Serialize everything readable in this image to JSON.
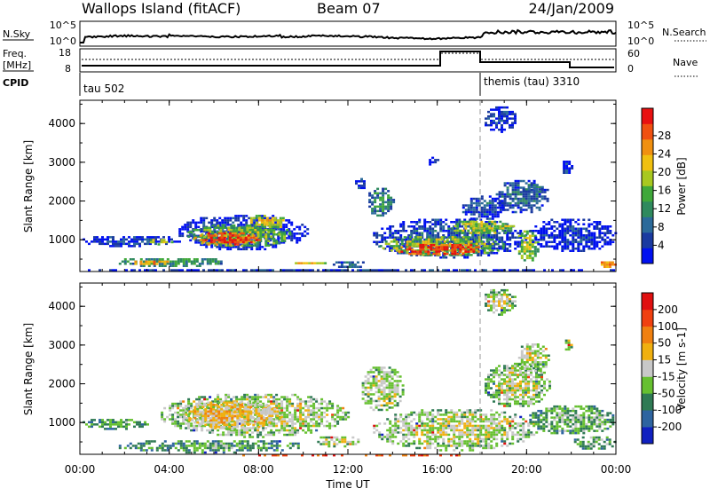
{
  "header": {
    "title": "Wallops Island (fitACF)",
    "beam": "Beam 07",
    "date": "24/Jan/2009"
  },
  "params": {
    "nsky_label": "N.Sky",
    "nsky_ticks": [
      "10^5",
      "10^0"
    ],
    "nsearch_label": "N.Search",
    "nsearch_ticks": [
      "10^5",
      "10^0"
    ],
    "freq_label": "Freq.",
    "freq_unit": "[MHz]",
    "freq_ticks": [
      "18",
      "8"
    ],
    "nave_label": "Nave",
    "nave_ticks": [
      "60",
      "0"
    ],
    "cpid_label": "CPID",
    "cpid_segments": [
      {
        "label": "tau 502",
        "start_h": 0
      },
      {
        "label": "themis (tau) 3310",
        "start_h": 18
      }
    ]
  },
  "chart_data": [
    {
      "type": "heatmap",
      "name": "power",
      "xlabel": "Time UT",
      "ylabel": "Slant Range [km]",
      "xlim": [
        0,
        24
      ],
      "ylim": [
        180,
        4600
      ],
      "yticks": [
        "1000",
        "2000",
        "3000",
        "4000"
      ],
      "colorbar_label": "Power [dB]",
      "colorbar_ticks": [
        "4",
        "8",
        "12",
        "16",
        "20",
        "24",
        "28"
      ],
      "colorbar_colors": [
        "#0010f0",
        "#1a3aa0",
        "#2b6a9a",
        "#2f8a5e",
        "#3fa83a",
        "#a8c820",
        "#f0c010",
        "#f09010",
        "#f05010",
        "#e81010"
      ],
      "regions": [
        {
          "t": [
            0.0,
            24.0
          ],
          "r": [
            200,
            300
          ],
          "level": 0.15
        },
        {
          "t": [
            0.0,
            4.5
          ],
          "r": [
            850,
            1150
          ],
          "level": 0.15
        },
        {
          "t": [
            3.0,
            4.2
          ],
          "r": [
            880,
            1080
          ],
          "level": 0.55
        },
        {
          "t": [
            1.5,
            6.5
          ],
          "r": [
            330,
            580
          ],
          "level": 0.4
        },
        {
          "t": [
            2.2,
            4.0
          ],
          "r": [
            380,
            520
          ],
          "level": 0.8
        },
        {
          "t": [
            4.3,
            10.2
          ],
          "r": [
            750,
            1700
          ],
          "level": 0.15
        },
        {
          "t": [
            4.7,
            9.5
          ],
          "r": [
            820,
            1450
          ],
          "level": 0.5
        },
        {
          "t": [
            5.0,
            8.0
          ],
          "r": [
            850,
            1250
          ],
          "level": 0.9
        },
        {
          "t": [
            7.5,
            9.2
          ],
          "r": [
            1300,
            1700
          ],
          "level": 0.6
        },
        {
          "t": [
            9.5,
            11.0
          ],
          "r": [
            380,
            480
          ],
          "level": 0.65
        },
        {
          "t": [
            11.2,
            12.8
          ],
          "r": [
            300,
            500
          ],
          "level": 0.25
        },
        {
          "t": [
            12.8,
            14.0
          ],
          "r": [
            1600,
            2400
          ],
          "level": 0.35
        },
        {
          "t": [
            12.2,
            12.8
          ],
          "r": [
            2300,
            2650
          ],
          "level": 0.15
        },
        {
          "t": [
            13.0,
            20.0
          ],
          "r": [
            550,
            1600
          ],
          "level": 0.2
        },
        {
          "t": [
            13.3,
            19.0
          ],
          "r": [
            600,
            1150
          ],
          "level": 0.55
        },
        {
          "t": [
            14.0,
            18.0
          ],
          "r": [
            620,
            950
          ],
          "level": 0.95
        },
        {
          "t": [
            16.5,
            19.5
          ],
          "r": [
            1150,
            1550
          ],
          "level": 0.55
        },
        {
          "t": [
            19.5,
            20.5
          ],
          "r": [
            450,
            1300
          ],
          "level": 0.55
        },
        {
          "t": [
            20.0,
            24.0
          ],
          "r": [
            700,
            1600
          ],
          "level": 0.12
        },
        {
          "t": [
            17.0,
            19.0
          ],
          "r": [
            1500,
            2200
          ],
          "level": 0.2
        },
        {
          "t": [
            18.5,
            21.0
          ],
          "r": [
            1700,
            2600
          ],
          "level": 0.25
        },
        {
          "t": [
            19.7,
            20.7
          ],
          "r": [
            2200,
            2500
          ],
          "level": 0.3
        },
        {
          "t": [
            21.5,
            22.0
          ],
          "r": [
            2700,
            3100
          ],
          "level": 0.15
        },
        {
          "t": [
            15.5,
            16.0
          ],
          "r": [
            2950,
            3200
          ],
          "level": 0.15
        },
        {
          "t": [
            18.0,
            19.5
          ],
          "r": [
            3800,
            4500
          ],
          "level": 0.15
        },
        {
          "t": [
            23.2,
            24.0
          ],
          "r": [
            300,
            500
          ],
          "level": 0.8
        }
      ]
    },
    {
      "type": "heatmap",
      "name": "velocity",
      "xlabel": "Time UT",
      "ylabel": "Slant Range [km]",
      "xlim": [
        0,
        24
      ],
      "ylim": [
        180,
        4600
      ],
      "xticks": [
        "00:00",
        "04:00",
        "08:00",
        "12:00",
        "16:00",
        "20:00",
        "00:00"
      ],
      "yticks": [
        "1000",
        "2000",
        "3000",
        "4000"
      ],
      "colorbar_label": "Velocity [m s-1]",
      "colorbar_ticks": [
        "200",
        "100",
        "50",
        "15",
        "-15",
        "-50",
        "-100",
        "-200"
      ],
      "colorbar_colors": [
        "#1020c0",
        "#2e64a0",
        "#2f7a54",
        "#66c030",
        "#c8c8c8",
        "#f0b010",
        "#f08010",
        "#f04010",
        "#e01010"
      ],
      "regions": [
        {
          "t": [
            0.0,
            24.0
          ],
          "r": [
            180,
            240
          ],
          "level": 0.92
        },
        {
          "t": [
            0.0,
            3.0
          ],
          "r": [
            850,
            1150
          ],
          "level": 0.35
        },
        {
          "t": [
            1.5,
            10.0
          ],
          "r": [
            250,
            600
          ],
          "level": 0.35
        },
        {
          "t": [
            3.5,
            12.0
          ],
          "r": [
            650,
            1800
          ],
          "level": 0.5
        },
        {
          "t": [
            4.5,
            9.0
          ],
          "r": [
            850,
            1600
          ],
          "level": 0.62
        },
        {
          "t": [
            10.5,
            12.5
          ],
          "r": [
            400,
            700
          ],
          "level": 0.5
        },
        {
          "t": [
            12.5,
            14.5
          ],
          "r": [
            1300,
            2500
          ],
          "level": 0.5
        },
        {
          "t": [
            13.0,
            20.5
          ],
          "r": [
            300,
            1400
          ],
          "level": 0.5
        },
        {
          "t": [
            18.0,
            21.0
          ],
          "r": [
            1400,
            2600
          ],
          "level": 0.5
        },
        {
          "t": [
            19.5,
            21.0
          ],
          "r": [
            2300,
            3100
          ],
          "level": 0.5
        },
        {
          "t": [
            20.0,
            24.0
          ],
          "r": [
            700,
            1500
          ],
          "level": 0.4
        },
        {
          "t": [
            22.0,
            24.0
          ],
          "r": [
            300,
            700
          ],
          "level": 0.4
        },
        {
          "t": [
            21.6,
            22.0
          ],
          "r": [
            2900,
            3200
          ],
          "level": 0.5
        },
        {
          "t": [
            18.0,
            19.5
          ],
          "r": [
            3800,
            4500
          ],
          "level": 0.5
        }
      ]
    }
  ]
}
